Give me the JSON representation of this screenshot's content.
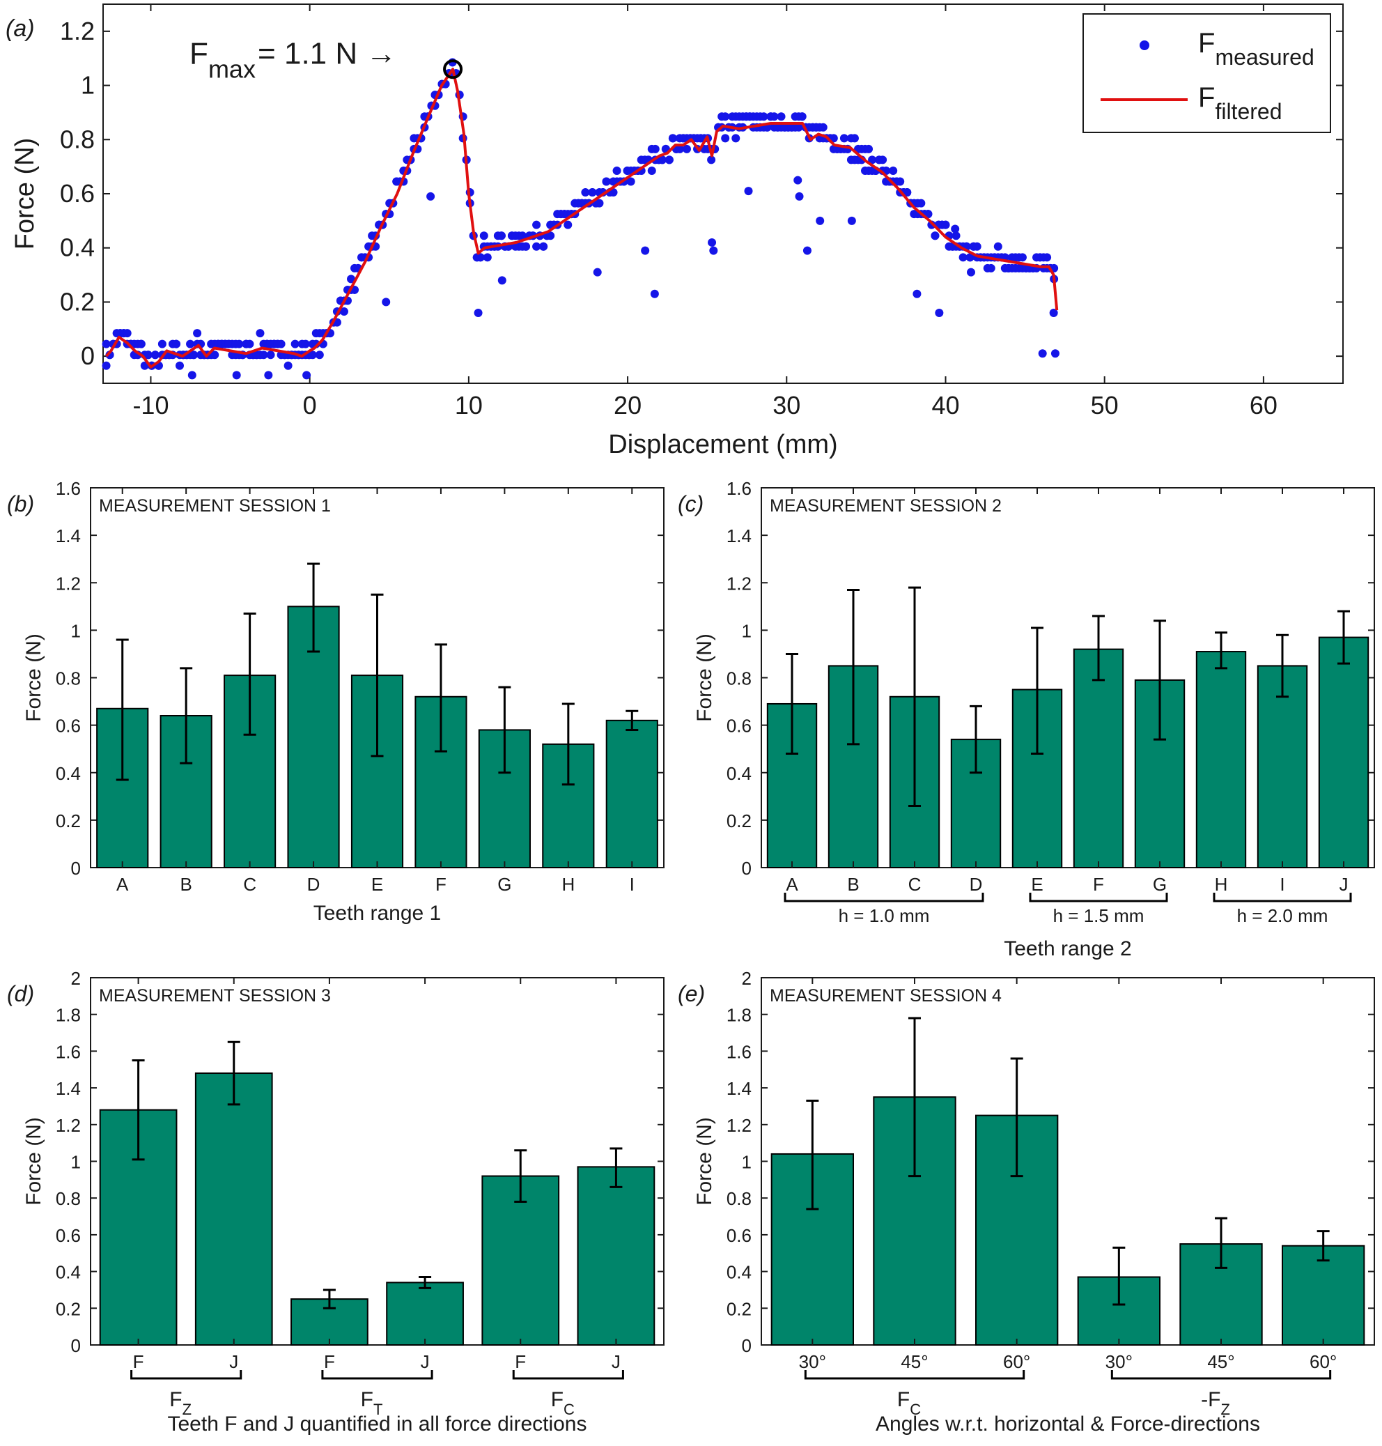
{
  "chart_data": [
    {
      "id": "a",
      "panel_label": "(a)",
      "type": "scatter",
      "xlabel": "Displacement (mm)",
      "ylabel": "Force (N)",
      "xlim": [
        -13,
        65
      ],
      "ylim": [
        -0.1,
        1.3
      ],
      "xticks": [
        -10,
        0,
        10,
        20,
        30,
        40,
        50,
        60
      ],
      "yticks": [
        0,
        0.2,
        0.4,
        0.6,
        0.8,
        1,
        1.2
      ],
      "grid": false,
      "legend_position": "top-right",
      "legend": [
        {
          "main": "F",
          "sub": "measured",
          "marker": "dot",
          "color": "#1515e8"
        },
        {
          "main": "F",
          "sub": "filtered",
          "marker": "line",
          "color": "#e01010"
        }
      ],
      "annotation": {
        "main": "F",
        "sub": "max",
        "text": " = 1.1 N →",
        "x": 9,
        "y": 1.06
      },
      "filtered": {
        "x": [
          -12.8,
          -12.5,
          -12,
          -11.5,
          -11,
          -10.5,
          -10,
          -9.5,
          -9,
          -8,
          -7,
          -6.5,
          -6,
          -5,
          -4,
          -3,
          -2,
          -1,
          -0.5,
          0,
          0.3,
          0.8,
          1.5,
          2.5,
          3.5,
          4.5,
          5.5,
          6.5,
          7.5,
          8.3,
          9,
          9.3,
          9.7,
          10,
          10.3,
          10.6,
          11,
          12,
          13,
          14,
          15,
          16,
          17,
          18,
          19,
          20,
          21,
          22,
          22.5,
          23,
          23.5,
          24,
          24.5,
          25,
          25.3,
          25.6,
          26,
          27,
          28,
          29,
          30,
          31,
          31.5,
          32,
          32.5,
          33,
          34,
          35,
          36,
          37,
          38,
          39,
          40,
          41,
          42,
          43,
          44,
          45,
          46,
          46.5,
          46.8,
          47
        ],
        "y": [
          0.0,
          0.02,
          0.07,
          0.05,
          0.02,
          0.0,
          -0.04,
          -0.02,
          0.02,
          0.0,
          0.04,
          0.0,
          0.03,
          0.02,
          0.01,
          0.03,
          0.02,
          0.01,
          0.0,
          0.02,
          0.03,
          0.06,
          0.13,
          0.24,
          0.35,
          0.48,
          0.6,
          0.75,
          0.89,
          1.0,
          1.06,
          0.98,
          0.82,
          0.6,
          0.46,
          0.38,
          0.4,
          0.41,
          0.42,
          0.44,
          0.46,
          0.5,
          0.54,
          0.58,
          0.62,
          0.66,
          0.7,
          0.74,
          0.75,
          0.78,
          0.78,
          0.8,
          0.76,
          0.81,
          0.74,
          0.83,
          0.85,
          0.84,
          0.85,
          0.86,
          0.86,
          0.86,
          0.8,
          0.82,
          0.81,
          0.78,
          0.77,
          0.72,
          0.68,
          0.62,
          0.55,
          0.5,
          0.44,
          0.4,
          0.37,
          0.36,
          0.35,
          0.34,
          0.33,
          0.33,
          0.3,
          0.17
        ]
      }
    },
    {
      "id": "b",
      "panel_label": "(b)",
      "type": "bar",
      "session_label": "MEASUREMENT SESSION 1",
      "xlabel": "Teeth range 1",
      "ylabel": "Force (N)",
      "ylim": [
        0,
        1.6
      ],
      "yticks": [
        0,
        0.2,
        0.4,
        0.6,
        0.8,
        1,
        1.2,
        1.4,
        1.6
      ],
      "categories": [
        "A",
        "B",
        "C",
        "D",
        "E",
        "F",
        "G",
        "H",
        "I"
      ],
      "values": [
        0.67,
        0.64,
        0.81,
        1.1,
        0.81,
        0.72,
        0.58,
        0.52,
        0.62
      ],
      "err_low": [
        0.37,
        0.44,
        0.56,
        0.91,
        0.47,
        0.49,
        0.4,
        0.35,
        0.58
      ],
      "err_high": [
        0.96,
        0.84,
        1.07,
        1.28,
        1.15,
        0.94,
        0.76,
        0.69,
        0.66
      ],
      "groups": []
    },
    {
      "id": "c",
      "panel_label": "(c)",
      "type": "bar",
      "session_label": "MEASUREMENT SESSION 2",
      "xlabel": "Teeth range 2",
      "ylabel": "Force (N)",
      "ylim": [
        0,
        1.6
      ],
      "yticks": [
        0,
        0.2,
        0.4,
        0.6,
        0.8,
        1,
        1.2,
        1.4,
        1.6
      ],
      "categories": [
        "A",
        "B",
        "C",
        "D",
        "E",
        "F",
        "G",
        "H",
        "I",
        "J"
      ],
      "values": [
        0.69,
        0.85,
        0.72,
        0.54,
        0.75,
        0.92,
        0.79,
        0.91,
        0.85,
        0.97
      ],
      "err_low": [
        0.48,
        0.52,
        0.26,
        0.4,
        0.48,
        0.79,
        0.54,
        0.84,
        0.72,
        0.86
      ],
      "err_high": [
        0.9,
        1.17,
        1.18,
        0.68,
        1.01,
        1.06,
        1.04,
        0.99,
        0.98,
        1.08
      ],
      "groups": [
        {
          "label": "h = 1.0 mm",
          "start": 0,
          "end": 3
        },
        {
          "label": "h = 1.5 mm",
          "start": 4,
          "end": 6
        },
        {
          "label": "h = 2.0 mm",
          "start": 7,
          "end": 9
        }
      ]
    },
    {
      "id": "d",
      "panel_label": "(d)",
      "type": "bar",
      "session_label": "MEASUREMENT SESSION 3",
      "xlabel": "Teeth F and J quantified in all force directions",
      "ylabel": "Force (N)",
      "ylim": [
        0,
        2
      ],
      "yticks": [
        0,
        0.2,
        0.4,
        0.6,
        0.8,
        1,
        1.2,
        1.4,
        1.6,
        1.8,
        2
      ],
      "categories": [
        "F",
        "J",
        "F",
        "J",
        "F",
        "J"
      ],
      "values": [
        1.28,
        1.48,
        0.25,
        0.34,
        0.92,
        0.97
      ],
      "err_low": [
        1.01,
        1.31,
        0.2,
        0.31,
        0.78,
        0.86
      ],
      "err_high": [
        1.55,
        1.65,
        0.3,
        0.37,
        1.06,
        1.07
      ],
      "groups": [
        {
          "main": "F",
          "sub": "Z",
          "start": 0,
          "end": 1
        },
        {
          "main": "F",
          "sub": "T",
          "start": 2,
          "end": 3
        },
        {
          "main": "F",
          "sub": "C",
          "start": 4,
          "end": 5
        }
      ]
    },
    {
      "id": "e",
      "panel_label": "(e)",
      "type": "bar",
      "session_label": "MEASUREMENT SESSION 4",
      "xlabel": "Angles w.r.t. horizontal & Force-directions",
      "ylabel": "Force (N)",
      "ylim": [
        0,
        2
      ],
      "yticks": [
        0,
        0.2,
        0.4,
        0.6,
        0.8,
        1,
        1.2,
        1.4,
        1.6,
        1.8,
        2
      ],
      "categories": [
        "30°",
        "45°",
        "60°",
        "30°",
        "45°",
        "60°"
      ],
      "values": [
        1.04,
        1.35,
        1.25,
        0.37,
        0.55,
        0.54
      ],
      "err_low": [
        0.74,
        0.92,
        0.92,
        0.22,
        0.42,
        0.46
      ],
      "err_high": [
        1.33,
        1.78,
        1.56,
        0.53,
        0.69,
        0.62
      ],
      "groups": [
        {
          "main": "F",
          "sub": "C",
          "start": 0,
          "end": 2
        },
        {
          "main": "-F",
          "sub": "Z",
          "start": 3,
          "end": 5
        }
      ]
    }
  ]
}
